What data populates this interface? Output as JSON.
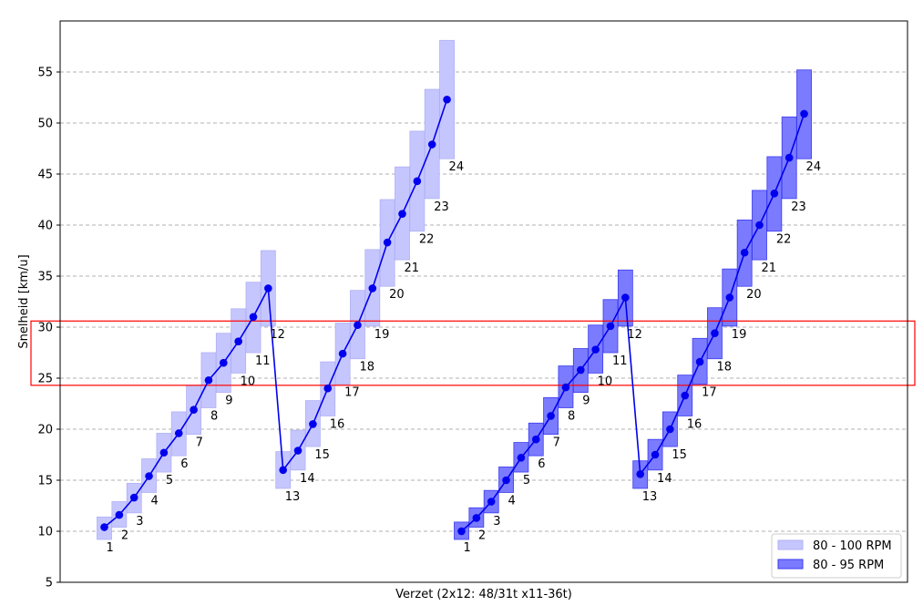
{
  "chart_data": {
    "type": "bar",
    "xlabel": "Verzet (2x12: 48/31t x11-36t)",
    "ylabel": "Snelheid [km/u]",
    "ylim": [
      5,
      60
    ],
    "yticks": [
      5,
      10,
      15,
      20,
      25,
      30,
      35,
      40,
      45,
      50,
      55
    ],
    "grid": "y-dashed",
    "legend_position": "lower-right",
    "highlight_band": [
      24.3,
      30.6
    ],
    "colors": {
      "band_light": "#c6c6ff",
      "band_light_edge": "#b0b0f5",
      "band_dark": "#7b7bff",
      "band_dark_edge": "#3a3af0",
      "line": "#0000ee",
      "highlight": "#ff0000",
      "grid": "#b0b0b0"
    },
    "series": [
      {
        "name": "80 - 100 RPM",
        "style": "light",
        "gear_labels": [
          "1",
          "2",
          "3",
          "4",
          "5",
          "6",
          "7",
          "8",
          "9",
          "10",
          "11",
          "12",
          "13",
          "14",
          "15",
          "16",
          "17",
          "18",
          "19",
          "20",
          "21",
          "22",
          "23",
          "24"
        ],
        "speed_mid": [
          10.4,
          11.6,
          13.3,
          15.4,
          17.7,
          19.6,
          21.9,
          24.8,
          26.5,
          28.6,
          31.0,
          33.8,
          16.0,
          17.9,
          20.5,
          24.0,
          27.4,
          30.2,
          33.8,
          38.3,
          41.1,
          44.3,
          47.9,
          52.3
        ],
        "range_low": [
          9.2,
          10.4,
          11.8,
          13.8,
          15.8,
          17.4,
          19.5,
          22.1,
          23.6,
          25.5,
          27.5,
          30.1,
          14.2,
          16.0,
          18.3,
          21.3,
          24.4,
          26.9,
          30.1,
          34.0,
          36.6,
          39.4,
          42.6,
          46.5
        ],
        "range_high": [
          11.4,
          12.9,
          14.7,
          17.1,
          19.6,
          21.7,
          24.3,
          27.5,
          29.4,
          31.8,
          34.4,
          37.5,
          17.8,
          19.9,
          22.8,
          26.6,
          30.4,
          33.6,
          37.6,
          42.5,
          45.7,
          49.2,
          53.3,
          58.1
        ]
      },
      {
        "name": "80 - 95 RPM",
        "style": "dark",
        "gear_labels": [
          "1",
          "2",
          "3",
          "4",
          "5",
          "6",
          "7",
          "8",
          "9",
          "10",
          "11",
          "12",
          "13",
          "14",
          "15",
          "16",
          "17",
          "18",
          "19",
          "20",
          "21",
          "22",
          "23",
          "24"
        ],
        "speed_mid": [
          10.0,
          11.3,
          12.9,
          15.0,
          17.2,
          19.0,
          21.3,
          24.1,
          25.8,
          27.8,
          30.1,
          32.9,
          15.6,
          17.5,
          20.0,
          23.3,
          26.6,
          29.4,
          32.9,
          37.3,
          40.0,
          43.1,
          46.6,
          50.9
        ],
        "range_low": [
          9.2,
          10.4,
          11.8,
          13.8,
          15.8,
          17.4,
          19.5,
          22.1,
          23.6,
          25.5,
          27.5,
          30.1,
          14.2,
          16.0,
          18.3,
          21.3,
          24.4,
          26.9,
          30.1,
          34.0,
          36.6,
          39.4,
          42.6,
          46.5
        ],
        "range_high": [
          10.9,
          12.3,
          14.0,
          16.3,
          18.7,
          20.6,
          23.1,
          26.2,
          27.9,
          30.2,
          32.7,
          35.6,
          16.9,
          19.0,
          21.7,
          25.3,
          28.9,
          31.9,
          35.7,
          40.5,
          43.4,
          46.7,
          50.6,
          55.2
        ]
      }
    ]
  }
}
